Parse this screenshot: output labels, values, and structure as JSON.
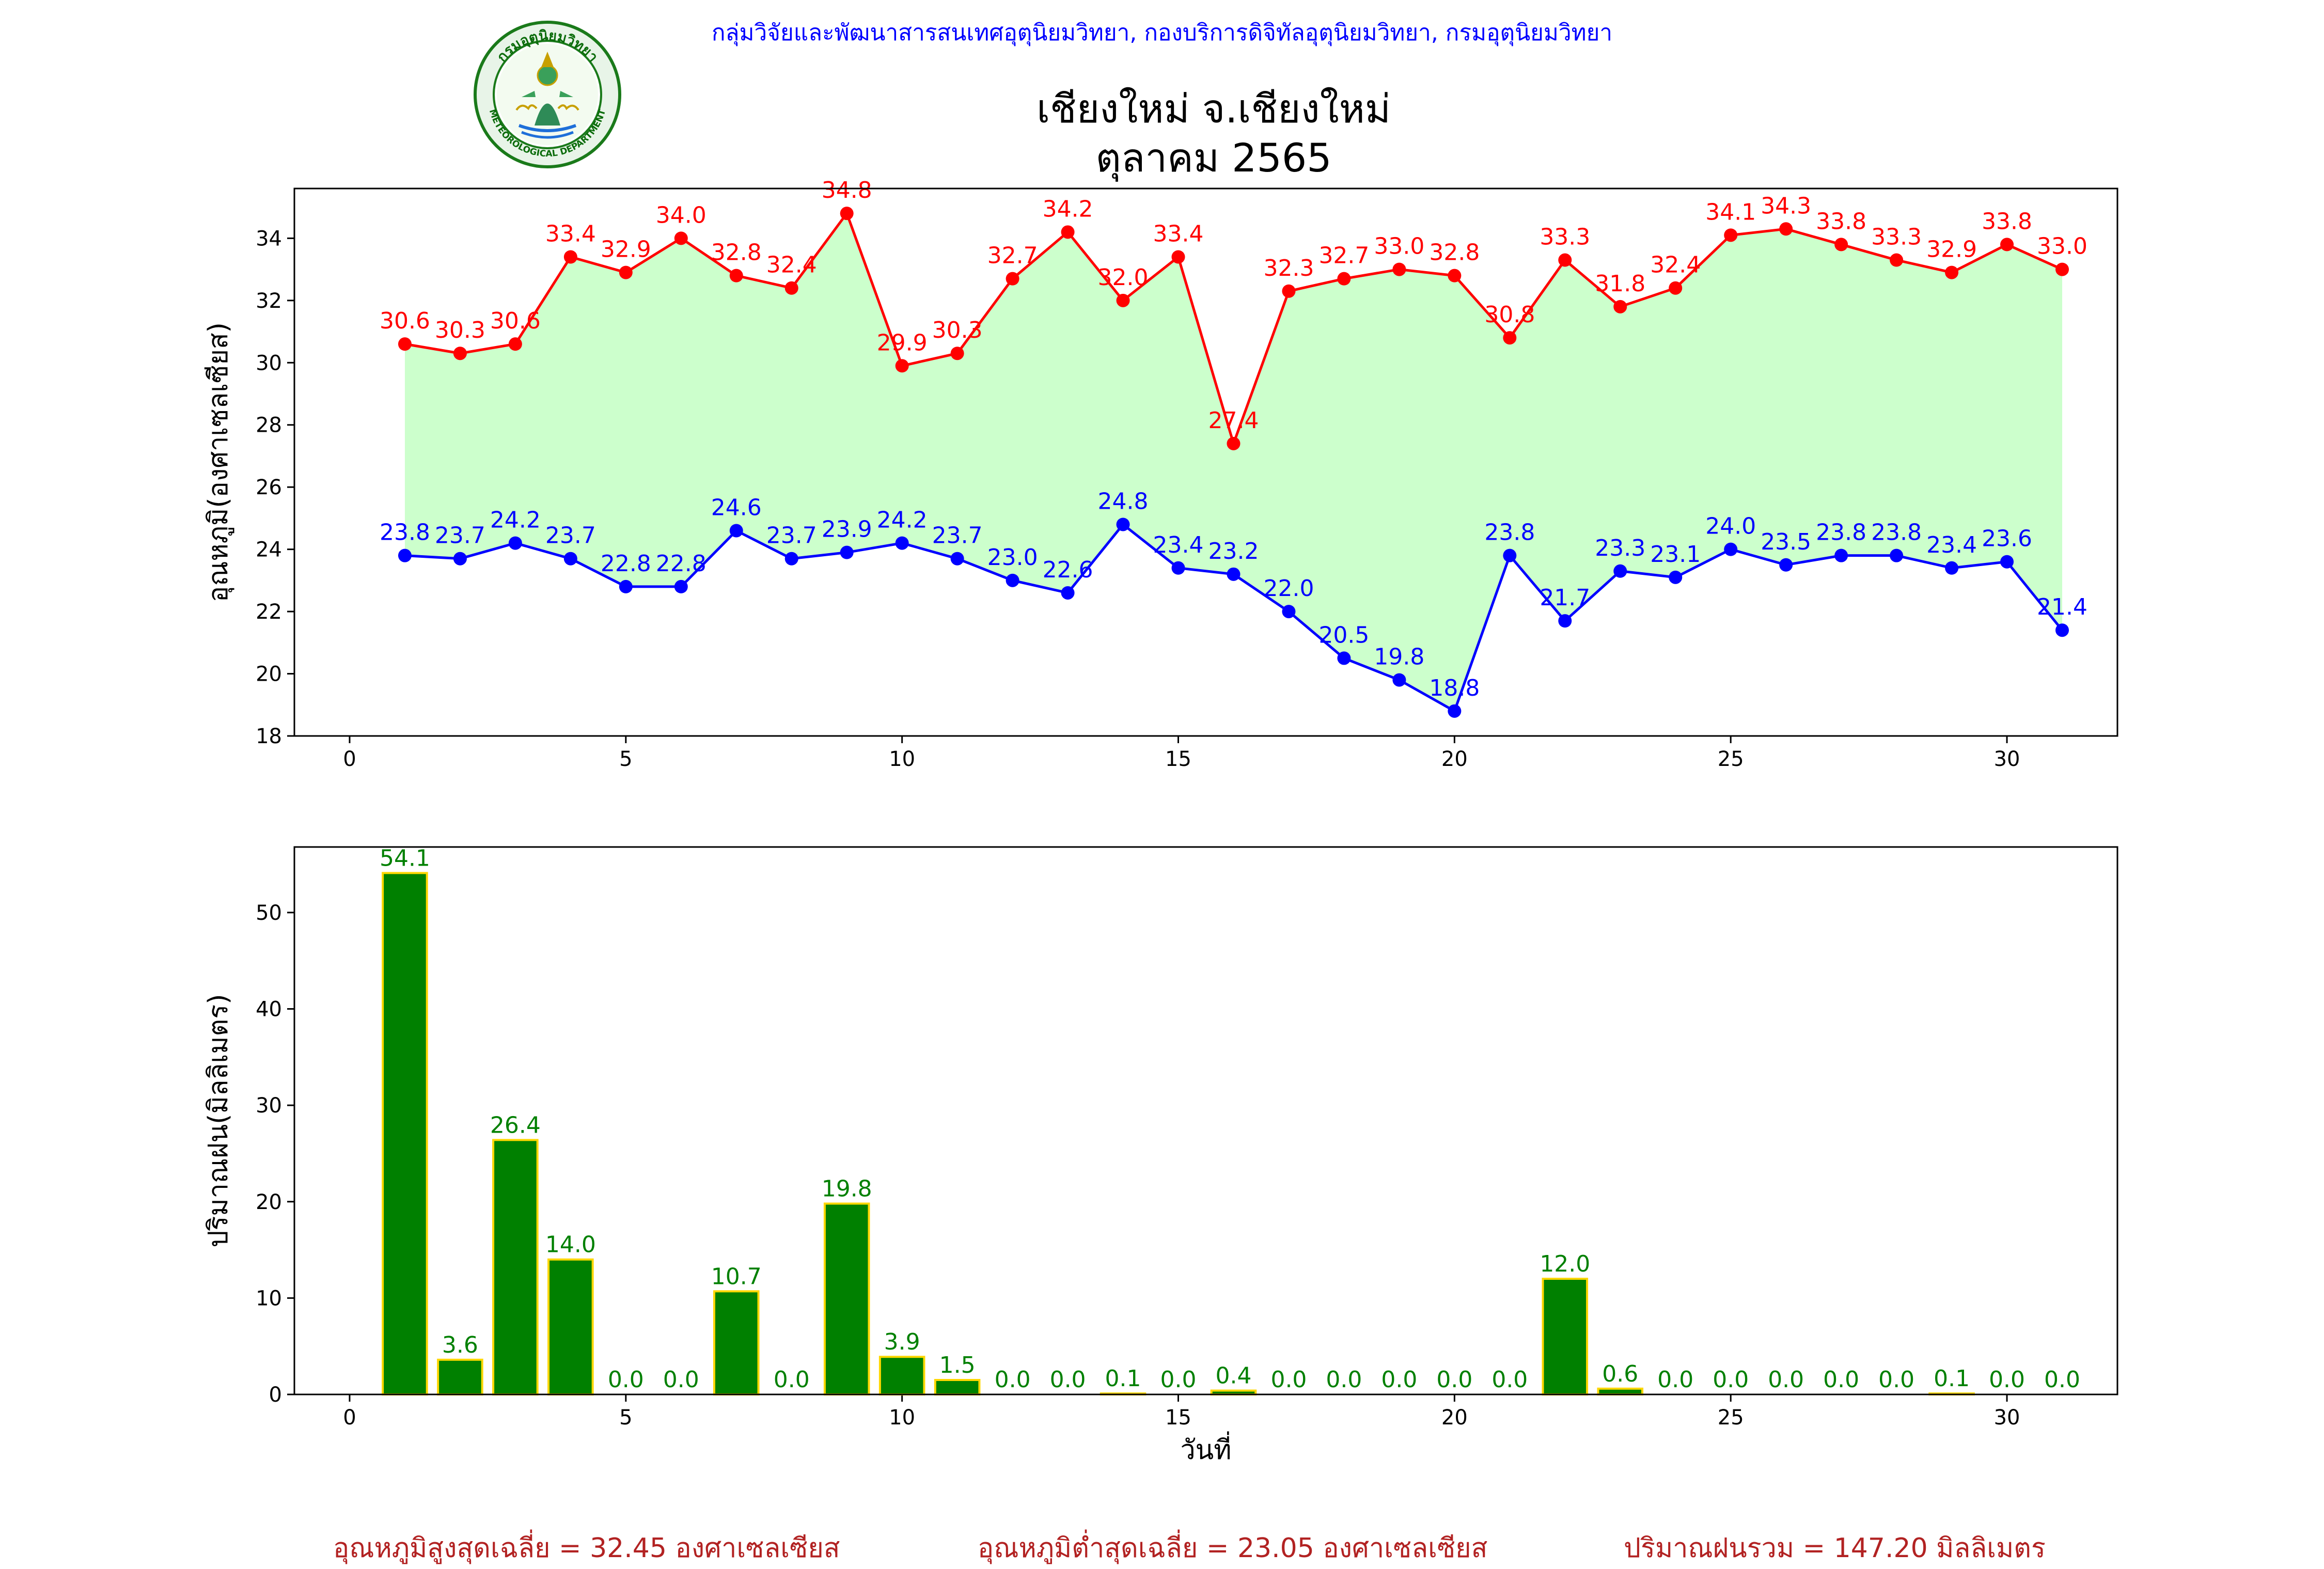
{
  "header": {
    "credit": "กลุ่มวิจัยและพัฒนาสารสนเทศอุตุนิยมวิทยา, กองบริการดิจิทัลอุตุนิยมวิทยา, กรมอุตุนิยมวิทยา",
    "title_line1": "เชียงใหม่ จ.เชียงใหม่",
    "title_line2": "ตุลาคม 2565",
    "logo": {
      "arc_text": "กรมอุตุนิยมวิทยา",
      "bottom_text": "METEOROLOGICAL DEPARTMENT"
    }
  },
  "footer": {
    "avg_max": "อุณหภูมิสูงสุดเฉลี่ย = 32.45 องศาเซลเซียส",
    "avg_min": "อุณหภูมิต่ำสุดเฉลี่ย = 23.05 องศาเซลเซียส",
    "total_rain": "ปริมาณฝนรวม = 147.20 มิลลิเมตร"
  },
  "colors": {
    "max_line": "#ff0000",
    "min_line": "#0000ff",
    "fill": "#ccffcc",
    "bar_fill": "#008000",
    "bar_edge": "#ffd700",
    "bar_label": "#008000"
  },
  "chart_data": [
    {
      "type": "line",
      "ylabel": "อุณหภูมิ(องศาเซลเซียส)",
      "xlabel": "",
      "xlim": [
        -1,
        32
      ],
      "ylim": [
        18,
        35.6
      ],
      "xticks": [
        0,
        5,
        10,
        15,
        20,
        25,
        30
      ],
      "yticks": [
        18,
        20,
        22,
        24,
        26,
        28,
        30,
        32,
        34
      ],
      "grid": false,
      "x": [
        1,
        2,
        3,
        4,
        5,
        6,
        7,
        8,
        9,
        10,
        11,
        12,
        13,
        14,
        15,
        16,
        17,
        18,
        19,
        20,
        21,
        22,
        23,
        24,
        25,
        26,
        27,
        28,
        29,
        30,
        31
      ],
      "series": [
        {
          "key": "max",
          "values": [
            30.6,
            30.3,
            30.6,
            33.4,
            32.9,
            34.0,
            32.8,
            32.4,
            34.8,
            29.9,
            30.3,
            32.7,
            34.2,
            32.0,
            33.4,
            27.4,
            32.3,
            32.7,
            33.0,
            32.8,
            30.8,
            33.3,
            31.8,
            32.4,
            34.1,
            34.3,
            33.8,
            33.3,
            32.9,
            33.8,
            33.0
          ]
        },
        {
          "key": "min",
          "values": [
            23.8,
            23.7,
            24.2,
            23.7,
            22.8,
            22.8,
            24.6,
            23.7,
            23.9,
            24.2,
            23.7,
            23.0,
            22.6,
            24.8,
            23.4,
            23.2,
            22.0,
            20.5,
            19.8,
            18.8,
            23.8,
            21.7,
            23.3,
            23.1,
            24.0,
            23.5,
            23.8,
            23.8,
            23.4,
            23.6,
            21.4
          ]
        }
      ]
    },
    {
      "type": "bar",
      "ylabel": "ปริมาณฝน(มิลลิเมตร)",
      "xlabel": "วันที่",
      "xlim": [
        -1,
        32
      ],
      "ylim": [
        0,
        56.8
      ],
      "xticks": [
        0,
        5,
        10,
        15,
        20,
        25,
        30
      ],
      "yticks": [
        0,
        10,
        20,
        30,
        40,
        50
      ],
      "grid": false,
      "categories": [
        1,
        2,
        3,
        4,
        5,
        6,
        7,
        8,
        9,
        10,
        11,
        12,
        13,
        14,
        15,
        16,
        17,
        18,
        19,
        20,
        21,
        22,
        23,
        24,
        25,
        26,
        27,
        28,
        29,
        30,
        31
      ],
      "values": [
        54.1,
        3.6,
        26.4,
        14.0,
        0.0,
        0.0,
        10.7,
        0.0,
        19.8,
        3.9,
        1.5,
        0.0,
        0.0,
        0.1,
        0.0,
        0.4,
        0.0,
        0.0,
        0.0,
        0.0,
        0.0,
        12.0,
        0.6,
        0.0,
        0.0,
        0.0,
        0.0,
        0.0,
        0.1,
        0.0,
        0.0
      ]
    }
  ]
}
